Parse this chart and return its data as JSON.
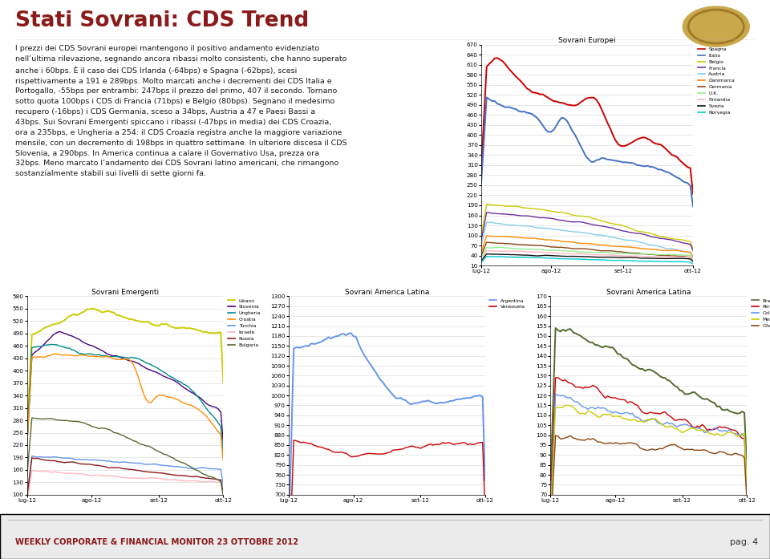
{
  "title": "Stati Sovrani: CDS Trend",
  "title_color": "#8B1A1A",
  "body_text": "I prezzi dei CDS Sovrani europei mantengono il positivo andamento evidenziato\nnell’ultima rilevazione, segnando ancora ribassi molto consistenti, che hanno superato\nanche i 60bps. È il caso dei CDS Irlanda (-64bps) e Spagna (-62bps), scesi\nrispettivamente a 191 e 289bps. Molto marcati anche i decrementi dei CDS Italia e\nPortogallo, -55bps per entrambi: 247bps il prezzo del primo, 407 il secondo. Tornano\nsotto quota 100bps i CDS di Francia (71bps) e Belgio (80bps). Segnano il medesimo\nrecupero (-16bps) i CDS Germania, sceso a 34bps, Austria a 47 e Paesi Bassi a\n43bps. Sui Sovrani Emergenti spiccano i ribassi (-47bps in media) dei CDS Croazia,\nora a 235bps, e Ungheria a 254: il CDS Croazia registra anche la maggiore variazione\nmensile, con un decremento di 198bps in quattro settimane. In ulteriore discesa il CDS\nSlovenia, a 290bps. In America continua a calare il Governativo Usa, prezza ora\n32bps. Meno marcato l’andamento dei CDS Sovrani latino americani, che rimangono\nsostanzialmente stabili sui livelli di sette giorni fa.",
  "footer_text": "WEEKLY CORPORATE & FINANCIAL MONITOR 23 OTTOBRE 2012",
  "footer_color": "#8B1A1A",
  "page_text": "pag. 4",
  "background": "#ffffff",
  "chart1": {
    "title": "Sovrani Europei",
    "xlabels": [
      "lug-12",
      "ago-12",
      "set-12",
      "ott-12"
    ],
    "ylim": [
      10,
      670
    ],
    "yticks": [
      10,
      40,
      70,
      100,
      130,
      160,
      190,
      220,
      250,
      280,
      310,
      340,
      370,
      400,
      430,
      460,
      490,
      520,
      550,
      580,
      610,
      640,
      670
    ]
  },
  "chart2": {
    "title": "Sovrani Emergenti",
    "xlabels": [
      "lug-12",
      "ago-12",
      "set-12",
      "ott-12"
    ],
    "ylim": [
      100,
      580
    ],
    "yticks": [
      100,
      130,
      160,
      190,
      220,
      250,
      280,
      310,
      340,
      370,
      400,
      430,
      460,
      490,
      520,
      550,
      580
    ]
  },
  "chart3": {
    "title": "Sovrani America Latina",
    "xlabels": [
      "lug-12",
      "ago-12",
      "set-12",
      "ott-12"
    ],
    "ylim": [
      700,
      1300
    ],
    "yticks": [
      700,
      730,
      760,
      790,
      820,
      850,
      880,
      910,
      940,
      970,
      1000,
      1030,
      1060,
      1090,
      1120,
      1150,
      1180,
      1210,
      1240,
      1270,
      1300
    ]
  },
  "chart4": {
    "title": "Sovrani America Latina",
    "xlabels": [
      "lug-12",
      "ago-12",
      "set-12",
      "ott-12"
    ],
    "ylim": [
      70,
      170
    ],
    "yticks": [
      70,
      75,
      80,
      85,
      90,
      95,
      100,
      105,
      110,
      115,
      120,
      125,
      130,
      135,
      140,
      145,
      150,
      155,
      160,
      165,
      170
    ]
  }
}
